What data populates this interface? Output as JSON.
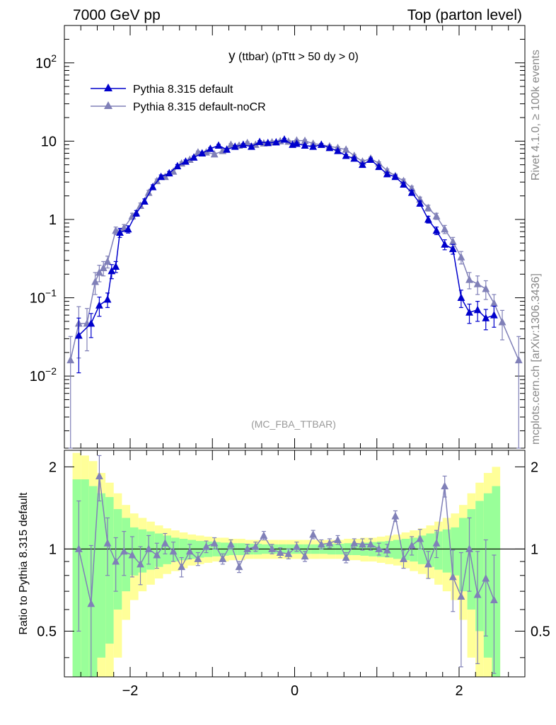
{
  "header": {
    "left": "7000 GeV pp",
    "right": "Top (parton level)"
  },
  "side": {
    "rivet": "Rivet 4.1.0, ≥ 100k events",
    "mcplots": "mcplots.cern.ch [arXiv:1306.3436]"
  },
  "chart_data": {
    "type": "line",
    "title": {
      "main": "y",
      "sub": " (ttbar) (pTtt > 50 dy > 0)"
    },
    "analysis_label": "(MC_FBA_TTBAR)",
    "xlim": [
      -2.8,
      2.8
    ],
    "ylim_main": [
      0.0012,
      300
    ],
    "ylim_ratio": [
      0.34,
      2.3
    ],
    "ylabel_ratio": "Ratio to Pythia 8.315 default",
    "x_ticks": [
      "−2",
      "0",
      "2"
    ],
    "y_ticks_main": {
      "100": "10^2",
      "10": "10",
      "1": "1",
      "0.1": "10^-1",
      "0.01": "10^-2"
    },
    "y_ticks_ratio": [
      "0.5",
      "1",
      "2"
    ],
    "colors": {
      "series1": "#0000cc",
      "series2": "#8080b8",
      "band_inner": "#99ff99",
      "band_outer": "#ffff99"
    },
    "series": [
      {
        "name": "Pythia 8.315 default",
        "marker": "triangle",
        "x": [
          -2.625,
          -2.475,
          -2.375,
          -2.275,
          -2.225,
          -2.175,
          -2.125,
          -2.025,
          -1.925,
          -1.825,
          -1.725,
          -1.625,
          -1.525,
          -1.425,
          -1.325,
          -1.225,
          -1.125,
          -1.025,
          -0.925,
          -0.825,
          -0.725,
          -0.625,
          -0.525,
          -0.425,
          -0.325,
          -0.225,
          -0.125,
          -0.025,
          0.025,
          0.125,
          0.225,
          0.325,
          0.425,
          0.525,
          0.625,
          0.725,
          0.825,
          0.925,
          1.025,
          1.125,
          1.225,
          1.325,
          1.425,
          1.525,
          1.625,
          1.725,
          1.825,
          1.925,
          2.025,
          2.125,
          2.225,
          2.325,
          2.425
        ],
        "y": [
          0.033,
          0.047,
          0.08,
          0.095,
          0.22,
          0.25,
          0.68,
          0.75,
          1.2,
          1.7,
          2.6,
          3.5,
          3.9,
          4.8,
          5.5,
          6.2,
          7.0,
          8.0,
          8.8,
          7.8,
          8.5,
          9.0,
          8.5,
          9.8,
          9.5,
          9.7,
          10.5,
          9.0,
          9.3,
          8.8,
          8.5,
          9.0,
          8.2,
          7.5,
          6.5,
          6.0,
          5.0,
          5.8,
          4.7,
          3.8,
          3.5,
          2.8,
          2.2,
          1.6,
          1.0,
          0.72,
          0.48,
          0.42,
          0.1,
          0.065,
          0.07,
          0.055,
          0.06
        ],
        "yerr": [
          0.022,
          0.016,
          0.022,
          0.02,
          0.045,
          0.04,
          0.09,
          0.08,
          0.1,
          0.13,
          0.17,
          0.2,
          0.2,
          0.23,
          0.25,
          0.26,
          0.28,
          0.3,
          0.31,
          0.29,
          0.3,
          0.31,
          0.3,
          0.32,
          0.32,
          0.32,
          0.33,
          0.31,
          0.32,
          0.31,
          0.3,
          0.31,
          0.3,
          0.28,
          0.27,
          0.25,
          0.23,
          0.24,
          0.22,
          0.2,
          0.19,
          0.17,
          0.15,
          0.12,
          0.1,
          0.08,
          0.07,
          0.06,
          0.025,
          0.018,
          0.02,
          0.016,
          0.018
        ]
      },
      {
        "name": "Pythia 8.315 default-noCR",
        "marker": "triangle",
        "x": [
          -2.725,
          -2.625,
          -2.525,
          -2.425,
          -2.375,
          -2.325,
          -2.275,
          -2.175,
          -2.075,
          -1.975,
          -1.875,
          -1.775,
          -1.675,
          -1.575,
          -1.475,
          -1.375,
          -1.275,
          -1.175,
          -1.075,
          -0.975,
          -0.875,
          -0.775,
          -0.675,
          -0.575,
          -0.475,
          -0.375,
          -0.275,
          -0.175,
          -0.075,
          0.025,
          0.125,
          0.225,
          0.325,
          0.425,
          0.525,
          0.625,
          0.725,
          0.825,
          0.925,
          1.025,
          1.125,
          1.225,
          1.325,
          1.425,
          1.525,
          1.625,
          1.725,
          1.825,
          1.925,
          2.025,
          2.125,
          2.225,
          2.325,
          2.425,
          2.525,
          2.725
        ],
        "y": [
          0.016,
          0.047,
          0.047,
          0.16,
          0.21,
          0.24,
          0.29,
          0.72,
          0.78,
          1.1,
          1.5,
          2.2,
          3.1,
          3.5,
          4.1,
          5.2,
          5.8,
          7.2,
          7.2,
          6.8,
          7.5,
          9.0,
          8.8,
          9.5,
          9.0,
          9.4,
          9.7,
          10.0,
          9.9,
          10.2,
          10.1,
          9.3,
          9.0,
          8.6,
          8.2,
          7.8,
          6.5,
          5.5,
          6.0,
          5.2,
          4.2,
          3.6,
          3.1,
          2.5,
          1.8,
          1.4,
          1.1,
          0.75,
          0.52,
          0.33,
          0.17,
          0.15,
          0.13,
          0.085,
          0.049,
          0.016
        ],
        "yerr": [
          0.016,
          0.03,
          0.026,
          0.05,
          0.05,
          0.05,
          0.05,
          0.08,
          0.08,
          0.1,
          0.12,
          0.15,
          0.18,
          0.19,
          0.21,
          0.24,
          0.25,
          0.28,
          0.28,
          0.27,
          0.28,
          0.31,
          0.31,
          0.32,
          0.31,
          0.32,
          0.32,
          0.33,
          0.33,
          0.33,
          0.33,
          0.32,
          0.31,
          0.31,
          0.3,
          0.29,
          0.27,
          0.25,
          0.26,
          0.24,
          0.21,
          0.2,
          0.18,
          0.16,
          0.13,
          0.12,
          0.1,
          0.09,
          0.07,
          0.06,
          0.04,
          0.04,
          0.035,
          0.025,
          0.02,
          0.016
        ]
      }
    ],
    "ratio": {
      "x": [
        -2.625,
        -2.475,
        -2.375,
        -2.275,
        -2.175,
        -2.075,
        -1.975,
        -1.875,
        -1.775,
        -1.675,
        -1.575,
        -1.475,
        -1.375,
        -1.275,
        -1.175,
        -1.075,
        -0.975,
        -0.875,
        -0.775,
        -0.675,
        -0.575,
        -0.475,
        -0.375,
        -0.275,
        -0.175,
        -0.075,
        0.025,
        0.125,
        0.225,
        0.325,
        0.425,
        0.525,
        0.625,
        0.725,
        0.825,
        0.925,
        1.025,
        1.125,
        1.225,
        1.325,
        1.425,
        1.525,
        1.625,
        1.725,
        1.825,
        1.925,
        2.025,
        2.125,
        2.225,
        2.325,
        2.425
      ],
      "y": [
        1.0,
        0.63,
        1.85,
        1.05,
        0.9,
        0.98,
        0.95,
        0.88,
        1.0,
        0.95,
        1.05,
        0.98,
        0.86,
        0.98,
        0.92,
        1.02,
        1.05,
        0.92,
        1.04,
        0.86,
        1.0,
        1.02,
        1.12,
        1.0,
        0.97,
        0.96,
        1.02,
        0.94,
        1.13,
        1.04,
        1.05,
        1.08,
        0.93,
        1.05,
        1.04,
        1.04,
        1.0,
        0.99,
        1.32,
        0.92,
        1.03,
        1.09,
        0.88,
        1.05,
        1.7,
        0.79,
        0.67,
        1.0,
        0.68,
        0.78,
        0.65
      ],
      "yerr": [
        0.5,
        0.4,
        0.35,
        0.25,
        0.2,
        0.18,
        0.16,
        0.14,
        0.12,
        0.1,
        0.09,
        0.08,
        0.07,
        0.06,
        0.05,
        0.05,
        0.05,
        0.04,
        0.04,
        0.04,
        0.04,
        0.04,
        0.04,
        0.04,
        0.04,
        0.04,
        0.04,
        0.04,
        0.04,
        0.04,
        0.04,
        0.04,
        0.04,
        0.04,
        0.05,
        0.05,
        0.05,
        0.05,
        0.06,
        0.07,
        0.08,
        0.09,
        0.1,
        0.12,
        0.15,
        0.2,
        0.3,
        0.3,
        0.3,
        0.3,
        0.3
      ]
    },
    "bands": {
      "edges": [
        -2.7,
        -2.6,
        -2.5,
        -2.4,
        -2.3,
        -2.2,
        -2.1,
        -2.0,
        -1.9,
        -1.8,
        -1.7,
        -1.6,
        -1.5,
        -1.4,
        -1.3,
        -1.2,
        -1.1,
        -1.0,
        -0.9,
        -0.8,
        -0.7,
        -0.6,
        -0.5,
        -0.4,
        -0.3,
        -0.2,
        -0.1,
        0.0,
        0.1,
        0.2,
        0.3,
        0.4,
        0.5,
        0.6,
        0.7,
        0.8,
        0.9,
        1.0,
        1.1,
        1.2,
        1.3,
        1.4,
        1.5,
        1.6,
        1.7,
        1.8,
        1.9,
        2.0,
        2.1,
        2.2,
        2.3,
        2.4,
        2.5
      ],
      "inner": [
        0.8,
        0.8,
        0.7,
        0.6,
        0.55,
        0.4,
        0.3,
        0.2,
        0.18,
        0.16,
        0.14,
        0.12,
        0.1,
        0.09,
        0.08,
        0.07,
        0.065,
        0.06,
        0.055,
        0.05,
        0.05,
        0.045,
        0.045,
        0.04,
        0.04,
        0.04,
        0.04,
        0.04,
        0.04,
        0.04,
        0.04,
        0.045,
        0.045,
        0.05,
        0.05,
        0.055,
        0.06,
        0.065,
        0.07,
        0.08,
        0.09,
        0.1,
        0.12,
        0.14,
        0.16,
        0.18,
        0.2,
        0.3,
        0.4,
        0.5,
        0.6,
        0.7
      ],
      "outer": [
        1.25,
        1.2,
        1.1,
        0.9,
        0.75,
        0.6,
        0.45,
        0.35,
        0.3,
        0.26,
        0.22,
        0.19,
        0.17,
        0.15,
        0.13,
        0.12,
        0.11,
        0.1,
        0.1,
        0.09,
        0.09,
        0.08,
        0.08,
        0.08,
        0.08,
        0.08,
        0.08,
        0.08,
        0.08,
        0.08,
        0.08,
        0.08,
        0.08,
        0.09,
        0.09,
        0.1,
        0.1,
        0.11,
        0.12,
        0.13,
        0.15,
        0.17,
        0.19,
        0.22,
        0.26,
        0.3,
        0.35,
        0.45,
        0.6,
        0.75,
        0.9,
        1.0
      ]
    }
  }
}
